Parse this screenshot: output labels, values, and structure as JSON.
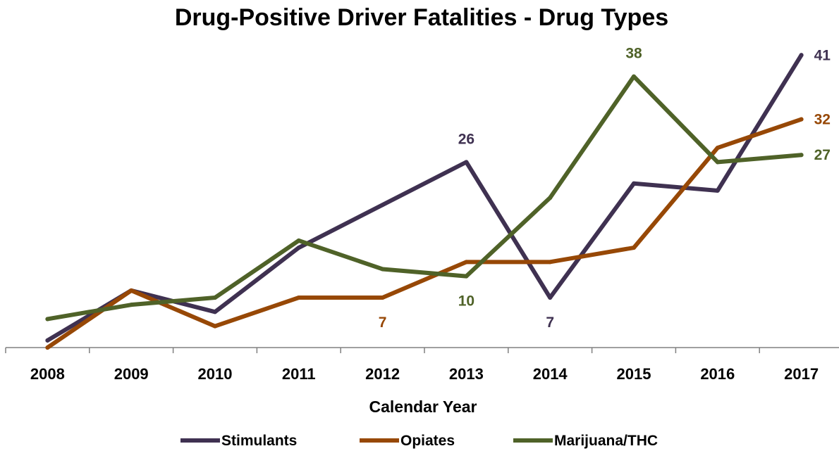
{
  "chart_data": {
    "type": "line",
    "title": "Drug-Positive Driver Fatalities - Drug Types",
    "xlabel": "Calendar Year",
    "ylabel": "",
    "categories": [
      "2008",
      "2009",
      "2010",
      "2011",
      "2012",
      "2013",
      "2014",
      "2015",
      "2016",
      "2017"
    ],
    "ylim": [
      0,
      43
    ],
    "grid": false,
    "legend_position": "bottom",
    "series": [
      {
        "name": "Stimulants",
        "color": "#3F3151",
        "values": [
          1,
          8,
          5,
          14,
          20,
          26,
          7,
          23,
          22,
          41
        ],
        "labels": [
          {
            "index": 5,
            "text": "26",
            "position": "above"
          },
          {
            "index": 6,
            "text": "7",
            "position": "below"
          },
          {
            "index": 9,
            "text": "41",
            "position": "right"
          }
        ]
      },
      {
        "name": "Opiates",
        "color": "#974806",
        "values": [
          0,
          8,
          3,
          7,
          7,
          12,
          12,
          14,
          28,
          32
        ],
        "labels": [
          {
            "index": 4,
            "text": "7",
            "position": "below"
          },
          {
            "index": 9,
            "text": "32",
            "position": "right"
          }
        ]
      },
      {
        "name": "Marijuana/THC",
        "color": "#4F6228",
        "values": [
          4,
          6,
          7,
          15,
          11,
          10,
          21,
          38,
          26,
          27
        ],
        "labels": [
          {
            "index": 5,
            "text": "10",
            "position": "below"
          },
          {
            "index": 7,
            "text": "38",
            "position": "above"
          },
          {
            "index": 9,
            "text": "27",
            "position": "right"
          }
        ]
      }
    ]
  }
}
